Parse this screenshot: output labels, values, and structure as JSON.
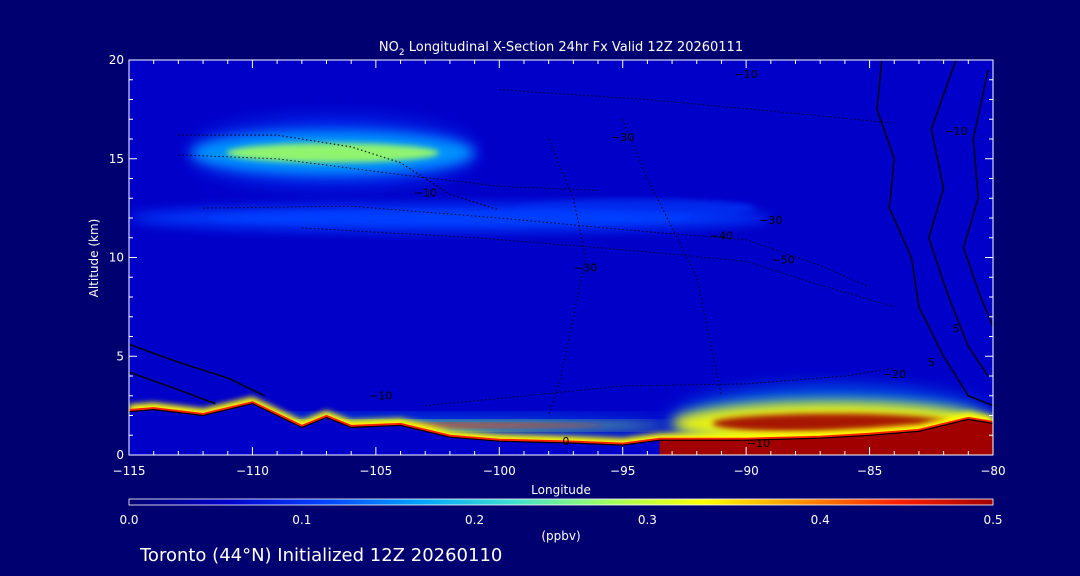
{
  "chart_data": {
    "type": "heatmap",
    "title_pre": "NO",
    "title_sub": "2",
    "title_post": " Longitudinal X-Section 24hr  Fx Valid 12Z 20260111",
    "xlabel": "Longitude",
    "ylabel": "Altitude (km)",
    "xlim": [
      -115,
      -80
    ],
    "ylim": [
      0,
      20
    ],
    "xticks": [
      -115,
      -110,
      -105,
      -100,
      -95,
      -90,
      -85,
      -80
    ],
    "xtick_labels": [
      "−115",
      "−110",
      "−105",
      "−100",
      "−95",
      "−90",
      "−85",
      "−80"
    ],
    "yticks": [
      0,
      5,
      10,
      15,
      20
    ],
    "ytick_labels": [
      "0",
      "5",
      "10",
      "15",
      "20"
    ],
    "colorbar": {
      "range": [
        0.0,
        0.5
      ],
      "ticks": [
        "0.0",
        "0.1",
        "0.2",
        "0.3",
        "0.4",
        "0.5"
      ],
      "label": "(ppbv)",
      "colors": [
        "#000070",
        "#0000c8",
        "#0040ff",
        "#00a0ff",
        "#40e0d0",
        "#a0ff60",
        "#ffff00",
        "#ff9000",
        "#ff2000",
        "#a00000"
      ]
    },
    "concentration_bands": [
      {
        "name": "upper layer",
        "lon": [
          -112.5,
          -101
        ],
        "alt_center": 15.3,
        "alt_thickness": 2.2,
        "peak_ppbv": 0.26
      },
      {
        "name": "upper tail",
        "lon": [
          -101,
          -88
        ],
        "alt_center": 12.5,
        "alt_thickness": 2.0,
        "peak_ppbv": 0.12
      },
      {
        "name": "mid layer",
        "lon": [
          -115,
          -89
        ],
        "alt_center": 12.0,
        "alt_thickness": 1.4,
        "peak_ppbv": 0.13
      },
      {
        "name": "surface west",
        "lon": [
          -115,
          -93
        ],
        "alt_center": 1.5,
        "alt_thickness": 0.4,
        "peak_ppbv": 0.45
      },
      {
        "name": "surface east",
        "lon": [
          -93,
          -80
        ],
        "alt_center": 1.6,
        "alt_thickness": 2.2,
        "peak_ppbv": 0.5
      }
    ],
    "terrain_alt_km": [
      [
        -115,
        2.2
      ],
      [
        -114,
        2.3
      ],
      [
        -112,
        2.0
      ],
      [
        -110,
        2.6
      ],
      [
        -108,
        1.4
      ],
      [
        -107,
        1.9
      ],
      [
        -106,
        1.4
      ],
      [
        -104,
        1.5
      ],
      [
        -102,
        0.9
      ],
      [
        -100,
        0.7
      ],
      [
        -97,
        0.6
      ],
      [
        -95,
        0.5
      ],
      [
        -93.5,
        0.75
      ],
      [
        -90,
        0.75
      ],
      [
        -87,
        0.85
      ],
      [
        -85,
        1.0
      ],
      [
        -83,
        1.2
      ],
      [
        -81,
        1.8
      ],
      [
        -80,
        1.6
      ]
    ],
    "contour_labels": [
      {
        "text": "−10",
        "lon": -90,
        "alt": 19.1
      },
      {
        "text": "−30",
        "lon": -95,
        "alt": 15.9
      },
      {
        "text": "−10",
        "lon": -103,
        "alt": 13.1
      },
      {
        "text": "−30",
        "lon": -89,
        "alt": 11.7
      },
      {
        "text": "−40",
        "lon": -91,
        "alt": 10.9
      },
      {
        "text": "−50",
        "lon": -88.5,
        "alt": 9.7
      },
      {
        "text": "−30",
        "lon": -96.5,
        "alt": 9.3
      },
      {
        "text": "−20",
        "lon": -84,
        "alt": 3.9
      },
      {
        "text": "−10",
        "lon": -104.8,
        "alt": 2.8
      },
      {
        "text": "−10",
        "lon": -89.5,
        "alt": 0.4
      },
      {
        "text": "0",
        "lon": -97.3,
        "alt": 0.5
      },
      {
        "text": "−10",
        "lon": -81.5,
        "alt": 16.2
      },
      {
        "text": "5",
        "lon": -81.5,
        "alt": 6.2
      },
      {
        "text": "5",
        "lon": -82.5,
        "alt": 4.5
      }
    ]
  },
  "footer": {
    "text": "Toronto (44°N) Initialized 12Z 20260110"
  }
}
